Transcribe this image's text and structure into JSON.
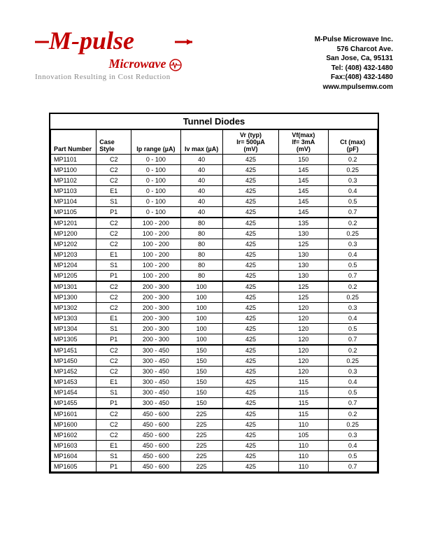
{
  "logo": {
    "main": "M-pulse",
    "sub": "Microwave",
    "tagline": "Innovation Resulting in Cost Reduction",
    "accent_color": "#c20000"
  },
  "company": {
    "name": "M-Pulse Microwave Inc.",
    "addr1": "576 Charcot Ave.",
    "addr2": "San Jose, Ca, 95131",
    "tel": "Tel: (408) 432-1480",
    "fax": "Fax:(408) 432-1480",
    "web": "www.mpulsemw.com"
  },
  "table": {
    "title": "Tunnel Diodes",
    "headers": {
      "part": "Part Number",
      "case": "Case Style",
      "ip": "Ip range (µA)",
      "iv": "Iv  max (µA)",
      "vr_top": "Vr (typ)",
      "vr_mid": "Ir= 500µA",
      "vr_unit": "(mV)",
      "vf_top": "Vf(max)",
      "vf_mid": "If= 3mA",
      "vf_unit": "(mV)",
      "ct_top": "Ct (max)",
      "ct_unit": "(pF)"
    },
    "groups": [
      [
        {
          "pn": "MP1101",
          "cs": "C2",
          "ip": "0 - 100",
          "iv": "40",
          "vr": "425",
          "vf": "150",
          "ct": "0.2"
        },
        {
          "pn": "MP1100",
          "cs": "C2",
          "ip": "0 - 100",
          "iv": "40",
          "vr": "425",
          "vf": "145",
          "ct": "0.25"
        },
        {
          "pn": "MP1102",
          "cs": "C2",
          "ip": "0 - 100",
          "iv": "40",
          "vr": "425",
          "vf": "145",
          "ct": "0.3"
        },
        {
          "pn": "MP1103",
          "cs": "E1",
          "ip": "0 - 100",
          "iv": "40",
          "vr": "425",
          "vf": "145",
          "ct": "0.4"
        },
        {
          "pn": "MP1104",
          "cs": "S1",
          "ip": "0 - 100",
          "iv": "40",
          "vr": "425",
          "vf": "145",
          "ct": "0.5"
        },
        {
          "pn": "MP1105",
          "cs": "P1",
          "ip": "0 - 100",
          "iv": "40",
          "vr": "425",
          "vf": "145",
          "ct": "0.7"
        }
      ],
      [
        {
          "pn": "MP1201",
          "cs": "C2",
          "ip": "100 - 200",
          "iv": "80",
          "vr": "425",
          "vf": "135",
          "ct": "0.2"
        },
        {
          "pn": "MP1200",
          "cs": "C2",
          "ip": "100 - 200",
          "iv": "80",
          "vr": "425",
          "vf": "130",
          "ct": "0.25"
        },
        {
          "pn": "MP1202",
          "cs": "C2",
          "ip": "100 - 200",
          "iv": "80",
          "vr": "425",
          "vf": "125",
          "ct": "0.3"
        },
        {
          "pn": "MP1203",
          "cs": "E1",
          "ip": "100 - 200",
          "iv": "80",
          "vr": "425",
          "vf": "130",
          "ct": "0.4"
        },
        {
          "pn": "MP1204",
          "cs": "S1",
          "ip": "100 - 200",
          "iv": "80",
          "vr": "425",
          "vf": "130",
          "ct": "0.5"
        },
        {
          "pn": "MP1205",
          "cs": "P1",
          "ip": "100 - 200",
          "iv": "80",
          "vr": "425",
          "vf": "130",
          "ct": "0.7"
        }
      ],
      [
        {
          "pn": "MP1301",
          "cs": "C2",
          "ip": "200 - 300",
          "iv": "100",
          "vr": "425",
          "vf": "125",
          "ct": "0.2"
        },
        {
          "pn": "MP1300",
          "cs": "C2",
          "ip": "200 - 300",
          "iv": "100",
          "vr": "425",
          "vf": "125",
          "ct": "0.25"
        },
        {
          "pn": "MP1302",
          "cs": "C2",
          "ip": "200 - 300",
          "iv": "100",
          "vr": "425",
          "vf": "120",
          "ct": "0.3"
        },
        {
          "pn": "MP1303",
          "cs": "E1",
          "ip": "200 - 300",
          "iv": "100",
          "vr": "425",
          "vf": "120",
          "ct": "0.4"
        },
        {
          "pn": "MP1304",
          "cs": "S1",
          "ip": "200 - 300",
          "iv": "100",
          "vr": "425",
          "vf": "120",
          "ct": "0.5"
        },
        {
          "pn": "MP1305",
          "cs": "P1",
          "ip": "200 - 300",
          "iv": "100",
          "vr": "425",
          "vf": "120",
          "ct": "0.7"
        }
      ],
      [
        {
          "pn": "MP1451",
          "cs": "C2",
          "ip": "300 - 450",
          "iv": "150",
          "vr": "425",
          "vf": "120",
          "ct": "0.2"
        },
        {
          "pn": "MP1450",
          "cs": "C2",
          "ip": "300 - 450",
          "iv": "150",
          "vr": "425",
          "vf": "120",
          "ct": "0.25"
        },
        {
          "pn": "MP1452",
          "cs": "C2",
          "ip": "300 - 450",
          "iv": "150",
          "vr": "425",
          "vf": "120",
          "ct": "0.3"
        },
        {
          "pn": "MP1453",
          "cs": "E1",
          "ip": "300 - 450",
          "iv": "150",
          "vr": "425",
          "vf": "115",
          "ct": "0.4"
        },
        {
          "pn": "MP1454",
          "cs": "S1",
          "ip": "300 - 450",
          "iv": "150",
          "vr": "425",
          "vf": "115",
          "ct": "0.5"
        },
        {
          "pn": "MP1455",
          "cs": "P1",
          "ip": "300 - 450",
          "iv": "150",
          "vr": "425",
          "vf": "115",
          "ct": "0.7"
        }
      ],
      [
        {
          "pn": "MP1601",
          "cs": "C2",
          "ip": "450 - 600",
          "iv": "225",
          "vr": "425",
          "vf": "115",
          "ct": "0.2"
        },
        {
          "pn": "MP1600",
          "cs": "C2",
          "ip": "450 - 600",
          "iv": "225",
          "vr": "425",
          "vf": "110",
          "ct": "0.25"
        },
        {
          "pn": "MP1602",
          "cs": "C2",
          "ip": "450 - 600",
          "iv": "225",
          "vr": "425",
          "vf": "105",
          "ct": "0.3"
        },
        {
          "pn": "MP1603",
          "cs": "E1",
          "ip": "450 - 600",
          "iv": "225",
          "vr": "425",
          "vf": "110",
          "ct": "0.4"
        },
        {
          "pn": "MP1604",
          "cs": "S1",
          "ip": "450 - 600",
          "iv": "225",
          "vr": "425",
          "vf": "110",
          "ct": "0.5"
        },
        {
          "pn": "MP1605",
          "cs": "P1",
          "ip": "450 - 600",
          "iv": "225",
          "vr": "425",
          "vf": "110",
          "ct": "0.7"
        }
      ]
    ]
  }
}
